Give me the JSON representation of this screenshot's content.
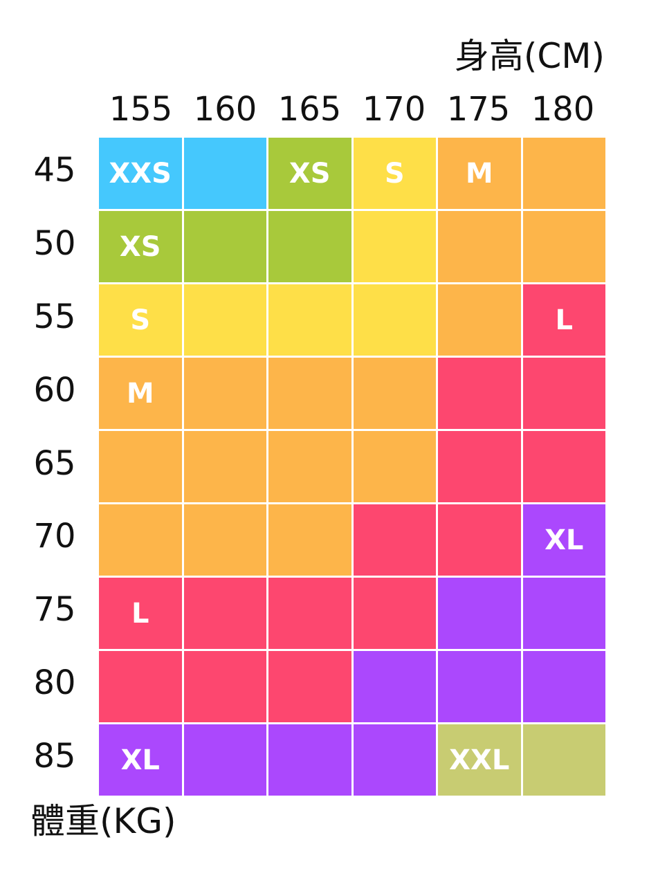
{
  "chart_data": {
    "type": "heatmap",
    "title": "",
    "xlabel": "身高(CM)",
    "ylabel": "體重(KG)",
    "x": [
      "155",
      "160",
      "165",
      "170",
      "175",
      "180"
    ],
    "y": [
      "45",
      "50",
      "55",
      "60",
      "65",
      "70",
      "75",
      "80",
      "85"
    ],
    "cells": [
      [
        "XXS",
        "XXS",
        "XS",
        "S",
        "M",
        "M"
      ],
      [
        "XS",
        "XS",
        "XS",
        "S",
        "M",
        "M"
      ],
      [
        "S",
        "S",
        "S",
        "S",
        "M",
        "L"
      ],
      [
        "M",
        "M",
        "M",
        "M",
        "L",
        "L"
      ],
      [
        "M",
        "M",
        "M",
        "M",
        "L",
        "L"
      ],
      [
        "M",
        "M",
        "M",
        "L",
        "L",
        "XL"
      ],
      [
        "L",
        "L",
        "L",
        "L",
        "XL",
        "XL"
      ],
      [
        "L",
        "L",
        "L",
        "XL",
        "XL",
        "XL"
      ],
      [
        "XL",
        "XL",
        "XL",
        "XL",
        "XXL",
        "XXL"
      ]
    ],
    "labeled_cells": [
      {
        "row": 0,
        "col": 0,
        "text": "XXS"
      },
      {
        "row": 0,
        "col": 2,
        "text": "XS"
      },
      {
        "row": 0,
        "col": 3,
        "text": "S"
      },
      {
        "row": 0,
        "col": 4,
        "text": "M"
      },
      {
        "row": 1,
        "col": 0,
        "text": "XS"
      },
      {
        "row": 2,
        "col": 0,
        "text": "S"
      },
      {
        "row": 2,
        "col": 5,
        "text": "L"
      },
      {
        "row": 3,
        "col": 0,
        "text": "M"
      },
      {
        "row": 5,
        "col": 5,
        "text": "XL"
      },
      {
        "row": 6,
        "col": 0,
        "text": "L"
      },
      {
        "row": 8,
        "col": 0,
        "text": "XL"
      },
      {
        "row": 8,
        "col": 4,
        "text": "XXL"
      }
    ],
    "size_colors": {
      "XXS": "#45c8fd",
      "XS": "#a8c93b",
      "S": "#fedf48",
      "M": "#fdb54a",
      "L": "#fd476f",
      "XL": "#ab48fd",
      "XXL": "#c8cc72"
    },
    "grid": false,
    "legend": "none"
  }
}
